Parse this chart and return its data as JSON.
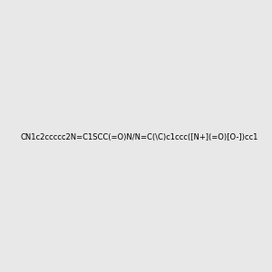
{
  "smiles": "CN1c2ccccc2N=C1SCC(=O)N/N=C(\\C)c1ccc([N+](=O)[O-])cc1",
  "image_size": 300,
  "background_color": "#e8e8e8"
}
